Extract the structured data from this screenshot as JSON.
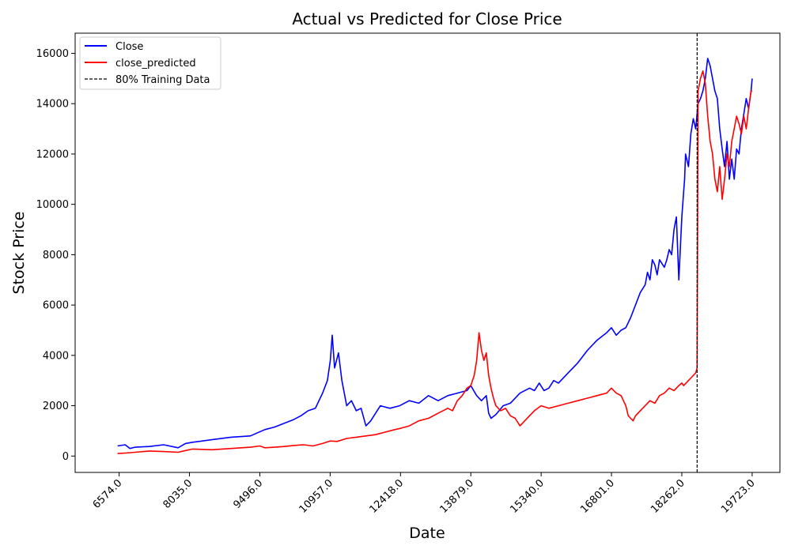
{
  "chart_data": {
    "type": "line",
    "title": "Actual vs Predicted for Close Price",
    "xlabel": "Date",
    "ylabel": "Stock Price",
    "xlim": [
      5660,
      20300
    ],
    "ylim": [
      -650,
      16800
    ],
    "x_ticks": [
      6574.0,
      8035.0,
      9496.0,
      10957.0,
      12418.0,
      13879.0,
      15340.0,
      16801.0,
      18262.0,
      19723.0
    ],
    "x_tick_labels": [
      "6574.0",
      "8035.0",
      "9496.0",
      "10957.0",
      "12418.0",
      "13879.0",
      "15340.0",
      "16801.0",
      "18262.0",
      "19723.0"
    ],
    "y_ticks": [
      0,
      2000,
      4000,
      6000,
      8000,
      10000,
      12000,
      14000,
      16000
    ],
    "y_tick_labels": [
      "0",
      "2000",
      "4000",
      "6000",
      "8000",
      "10000",
      "12000",
      "14000",
      "16000"
    ],
    "grid": false,
    "legend_position": "top-left",
    "series": [
      {
        "name": "Close",
        "color": "#0000ff",
        "x": [
          6540,
          6700,
          6800,
          6900,
          7200,
          7500,
          7800,
          7950,
          8100,
          8500,
          8900,
          9300,
          9600,
          9800,
          10000,
          10200,
          10350,
          10500,
          10650,
          10800,
          10900,
          10960,
          11000,
          11050,
          11130,
          11200,
          11300,
          11400,
          11500,
          11600,
          11700,
          11800,
          12000,
          12200,
          12400,
          12600,
          12800,
          13000,
          13200,
          13400,
          13600,
          13800,
          13879,
          14000,
          14100,
          14200,
          14250,
          14300,
          14400,
          14550,
          14700,
          14900,
          15100,
          15200,
          15300,
          15400,
          15500,
          15600,
          15700,
          15900,
          16100,
          16300,
          16500,
          16700,
          16801,
          16900,
          17000,
          17100,
          17200,
          17300,
          17400,
          17500,
          17550,
          17600,
          17650,
          17700,
          17750,
          17800,
          17900,
          17950,
          18000,
          18050,
          18100,
          18150,
          18200,
          18262,
          18300,
          18320,
          18340,
          18400,
          18450,
          18500,
          18550,
          18600,
          18650,
          18700,
          18750,
          18800,
          18850,
          18900,
          18950,
          19000,
          19050,
          19100,
          19150,
          19200,
          19250,
          19300,
          19350,
          19400,
          19450,
          19500,
          19550,
          19600,
          19650,
          19700,
          19723
        ],
        "y": [
          400,
          450,
          300,
          350,
          380,
          450,
          330,
          500,
          550,
          650,
          750,
          800,
          1050,
          1150,
          1300,
          1450,
          1600,
          1800,
          1900,
          2500,
          3000,
          3800,
          4800,
          3500,
          4100,
          3000,
          2000,
          2200,
          1800,
          1900,
          1200,
          1400,
          2000,
          1900,
          2000,
          2200,
          2100,
          2400,
          2200,
          2400,
          2500,
          2600,
          2800,
          2400,
          2200,
          2400,
          1700,
          1500,
          1650,
          2000,
          2100,
          2500,
          2700,
          2600,
          2900,
          2600,
          2700,
          3000,
          2900,
          3300,
          3700,
          4200,
          4600,
          4900,
          5100,
          4800,
          5000,
          5100,
          5500,
          6000,
          6500,
          6800,
          7300,
          7000,
          7800,
          7600,
          7200,
          7800,
          7500,
          7800,
          8200,
          8000,
          9000,
          9500,
          7000,
          9500,
          10500,
          11000,
          12000,
          11500,
          12800,
          13400,
          13000,
          14000,
          14200,
          14500,
          15000,
          15800,
          15500,
          15000,
          14500,
          14200,
          13000,
          12200,
          11500,
          12500,
          11000,
          11800,
          11000,
          12200,
          12000,
          13000,
          13600,
          14200,
          13800,
          14500,
          15000
        ]
      },
      {
        "name": "close_predicted",
        "color": "#ff0000",
        "x": [
          6540,
          6700,
          6900,
          7200,
          7500,
          7800,
          7950,
          8100,
          8500,
          8900,
          9300,
          9496,
          9600,
          9800,
          10000,
          10200,
          10400,
          10600,
          10800,
          10957,
          11100,
          11300,
          11500,
          11700,
          11900,
          12100,
          12300,
          12418,
          12600,
          12800,
          13000,
          13200,
          13400,
          13500,
          13600,
          13700,
          13800,
          13879,
          13950,
          14000,
          14050,
          14100,
          14150,
          14200,
          14250,
          14300,
          14350,
          14400,
          14500,
          14600,
          14700,
          14800,
          14900,
          15000,
          15100,
          15200,
          15340,
          15500,
          15700,
          15900,
          16100,
          16300,
          16500,
          16700,
          16801,
          16900,
          17000,
          17100,
          17150,
          17200,
          17250,
          17300,
          17400,
          17500,
          17600,
          17700,
          17800,
          17900,
          18000,
          18100,
          18200,
          18262,
          18300,
          18350,
          18400,
          18450,
          18500,
          18550,
          18580,
          18600,
          18650,
          18700,
          18750,
          18800,
          18850,
          18900,
          18950,
          19000,
          19050,
          19100,
          19150,
          19200,
          19250,
          19300,
          19350,
          19400,
          19450,
          19500,
          19550,
          19600,
          19650,
          19700,
          19723
        ],
        "y": [
          100,
          120,
          150,
          200,
          180,
          150,
          220,
          280,
          250,
          300,
          350,
          400,
          330,
          350,
          380,
          420,
          450,
          400,
          500,
          600,
          580,
          700,
          750,
          800,
          850,
          950,
          1050,
          1100,
          1200,
          1400,
          1500,
          1700,
          1900,
          1800,
          2200,
          2400,
          2700,
          2800,
          3200,
          3800,
          4900,
          4200,
          3800,
          4100,
          3200,
          2700,
          2300,
          2000,
          1800,
          1900,
          1600,
          1500,
          1200,
          1400,
          1600,
          1800,
          2000,
          1900,
          2000,
          2100,
          2200,
          2300,
          2400,
          2500,
          2700,
          2500,
          2400,
          2000,
          1600,
          1500,
          1400,
          1600,
          1800,
          2000,
          2200,
          2100,
          2400,
          2500,
          2700,
          2600,
          2800,
          2900,
          2800,
          2900,
          3000,
          3100,
          3200,
          3300,
          3500,
          14500,
          15000,
          15300,
          14800,
          13500,
          12500,
          12000,
          11000,
          10500,
          11500,
          10200,
          11000,
          12000,
          11500,
          12500,
          13000,
          13500,
          13200,
          12800,
          13500,
          13000,
          13800,
          14500,
          14500
        ]
      }
    ],
    "vline": {
      "x": 18580,
      "label": "80% Training Data",
      "color": "#000000"
    }
  }
}
